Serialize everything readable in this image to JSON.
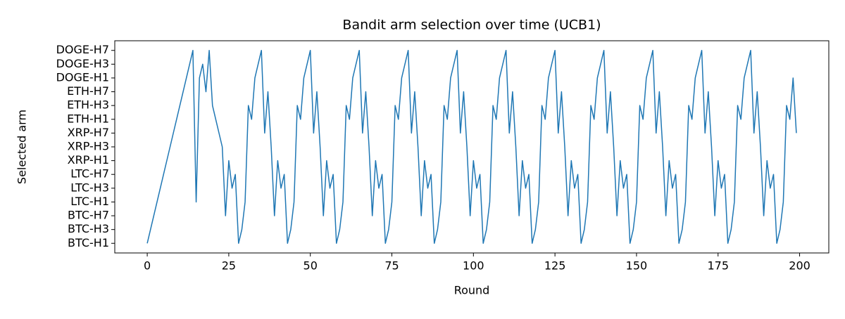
{
  "chart_data": {
    "type": "line",
    "title": "Bandit arm selection over time (UCB1)",
    "xlabel": "Round",
    "ylabel": "Selected arm",
    "x": [
      0,
      1,
      2,
      3,
      4,
      5,
      6,
      7,
      8,
      9,
      10,
      11,
      12,
      13,
      14,
      15,
      16,
      17,
      18,
      19,
      20,
      21,
      22,
      23,
      24,
      25,
      26,
      27,
      28,
      29,
      30,
      31,
      32,
      33,
      34,
      35,
      36,
      37,
      38,
      39,
      40,
      41,
      42,
      43,
      44,
      45,
      46,
      47,
      48,
      49,
      50,
      51,
      52,
      53,
      54,
      55,
      56,
      57,
      58,
      59,
      60,
      61,
      62,
      63,
      64,
      65,
      66,
      67,
      68,
      69,
      70,
      71,
      72,
      73,
      74,
      75,
      76,
      77,
      78,
      79,
      80,
      81,
      82,
      83,
      84,
      85,
      86,
      87,
      88,
      89,
      90,
      91,
      92,
      93,
      94,
      95,
      96,
      97,
      98,
      99,
      100,
      101,
      102,
      103,
      104,
      105,
      106,
      107,
      108,
      109,
      110,
      111,
      112,
      113,
      114,
      115,
      116,
      117,
      118,
      119,
      120,
      121,
      122,
      123,
      124,
      125,
      126,
      127,
      128,
      129,
      130,
      131,
      132,
      133,
      134,
      135,
      136,
      137,
      138,
      139,
      140,
      141,
      142,
      143,
      144,
      145,
      146,
      147,
      148,
      149,
      150,
      151,
      152,
      153,
      154,
      155,
      156,
      157,
      158,
      159,
      160,
      161,
      162,
      163,
      164,
      165,
      166,
      167,
      168,
      169,
      170,
      171,
      172,
      173,
      174,
      175,
      176,
      177,
      178,
      179,
      180,
      181,
      182,
      183,
      184,
      185,
      186,
      187,
      188,
      189,
      190,
      191,
      192,
      193,
      194,
      195,
      196,
      197,
      198,
      199
    ],
    "series": [
      {
        "color": "#1f77b4",
        "values": [
          0,
          1,
          2,
          3,
          4,
          5,
          6,
          7,
          8,
          9,
          10,
          11,
          12,
          13,
          14,
          3,
          12,
          13,
          11,
          14,
          10,
          9,
          8,
          7,
          2,
          6,
          4,
          5,
          0,
          1,
          3,
          10,
          9,
          12,
          13,
          14,
          8,
          11,
          7,
          2,
          6,
          4,
          5,
          0,
          1,
          3,
          10,
          9,
          12,
          13,
          14,
          8,
          11,
          7,
          2,
          6,
          4,
          5,
          0,
          1,
          3,
          10,
          9,
          12,
          13,
          14,
          8,
          11,
          7,
          2,
          6,
          4,
          5,
          0,
          1,
          3,
          10,
          9,
          12,
          13,
          14,
          8,
          11,
          7,
          2,
          6,
          4,
          5,
          0,
          1,
          3,
          10,
          9,
          12,
          13,
          14,
          8,
          11,
          7,
          2,
          6,
          4,
          5,
          0,
          1,
          3,
          10,
          9,
          12,
          13,
          14,
          8,
          11,
          7,
          2,
          6,
          4,
          5,
          0,
          1,
          3,
          10,
          9,
          12,
          13,
          14,
          8,
          11,
          7,
          2,
          6,
          4,
          5,
          0,
          1,
          3,
          10,
          9,
          12,
          13,
          14,
          8,
          11,
          7,
          2,
          6,
          4,
          5,
          0,
          1,
          3,
          10,
          9,
          12,
          13,
          14,
          8,
          11,
          7,
          2,
          6,
          4,
          5,
          0,
          1,
          3,
          10,
          9,
          12,
          13,
          14,
          8,
          11,
          7,
          2,
          6,
          4,
          5,
          0,
          1,
          3,
          10,
          9,
          12,
          13,
          14,
          8,
          11,
          7,
          2,
          6,
          4,
          5,
          0,
          1,
          3,
          10,
          9,
          12,
          8
        ]
      }
    ],
    "xlim": [
      -9.95,
      208.95
    ],
    "xticks": [
      0,
      25,
      50,
      75,
      100,
      125,
      150,
      175,
      200
    ],
    "ylim": [
      -0.7,
      14.7
    ],
    "yticks": [
      {
        "value": 0,
        "label": "BTC-H1"
      },
      {
        "value": 1,
        "label": "BTC-H3"
      },
      {
        "value": 2,
        "label": "BTC-H7"
      },
      {
        "value": 3,
        "label": "LTC-H1"
      },
      {
        "value": 4,
        "label": "LTC-H3"
      },
      {
        "value": 5,
        "label": "LTC-H7"
      },
      {
        "value": 6,
        "label": "XRP-H1"
      },
      {
        "value": 7,
        "label": "XRP-H3"
      },
      {
        "value": 8,
        "label": "XRP-H7"
      },
      {
        "value": 9,
        "label": "ETH-H1"
      },
      {
        "value": 10,
        "label": "ETH-H3"
      },
      {
        "value": 11,
        "label": "ETH-H7"
      },
      {
        "value": 12,
        "label": "DOGE-H1"
      },
      {
        "value": 13,
        "label": "DOGE-H3"
      },
      {
        "value": 14,
        "label": "DOGE-H7"
      }
    ]
  }
}
